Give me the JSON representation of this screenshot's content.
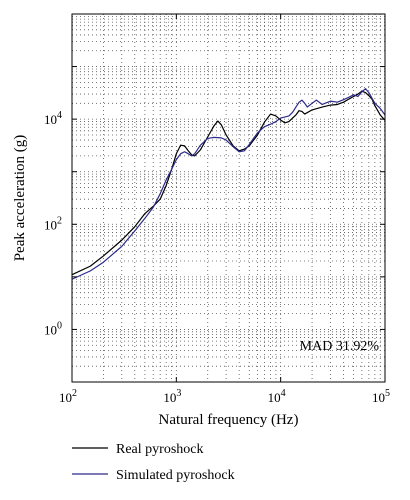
{
  "chart_data": {
    "type": "line",
    "xscale": "log",
    "yscale": "log",
    "xlim": [
      100,
      100000
    ],
    "ylim": [
      0.1,
      1000000
    ],
    "grid": true,
    "xlabel": "Natural frequency (Hz)",
    "ylabel": "Peak acceleration (g)",
    "xticks": [
      {
        "value": 100,
        "base": "10",
        "exp": "2"
      },
      {
        "value": 1000,
        "base": "10",
        "exp": "3"
      },
      {
        "value": 10000,
        "base": "10",
        "exp": "4"
      },
      {
        "value": 100000,
        "base": "10",
        "exp": "5"
      }
    ],
    "yticks": [
      {
        "value": 1,
        "base": "10",
        "exp": "0"
      },
      {
        "value": 100,
        "base": "10",
        "exp": "2"
      },
      {
        "value": 10000,
        "base": "10",
        "exp": "4"
      }
    ],
    "annotation": "MAD 31.92%",
    "legend_position": "bottom",
    "series": [
      {
        "name": "Real pyroshock",
        "color": "#000000",
        "points": [
          [
            100,
            11
          ],
          [
            150,
            16
          ],
          [
            200,
            25
          ],
          [
            300,
            50
          ],
          [
            400,
            90
          ],
          [
            500,
            160
          ],
          [
            600,
            220
          ],
          [
            700,
            300
          ],
          [
            800,
            550
          ],
          [
            900,
            1100
          ],
          [
            1000,
            2200
          ],
          [
            1100,
            3200
          ],
          [
            1200,
            3100
          ],
          [
            1300,
            2500
          ],
          [
            1400,
            2100
          ],
          [
            1500,
            2000
          ],
          [
            1700,
            2600
          ],
          [
            2000,
            4600
          ],
          [
            2300,
            7500
          ],
          [
            2500,
            9200
          ],
          [
            2700,
            7800
          ],
          [
            3000,
            5000
          ],
          [
            3500,
            3100
          ],
          [
            4000,
            2500
          ],
          [
            4500,
            2700
          ],
          [
            5000,
            3100
          ],
          [
            6000,
            5000
          ],
          [
            7000,
            8800
          ],
          [
            8000,
            12500
          ],
          [
            9000,
            11500
          ],
          [
            10000,
            9600
          ],
          [
            11000,
            8500
          ],
          [
            12000,
            9000
          ],
          [
            13000,
            10500
          ],
          [
            14000,
            12000
          ],
          [
            15000,
            14500
          ],
          [
            16000,
            14000
          ],
          [
            17000,
            12500
          ],
          [
            20000,
            15000
          ],
          [
            25000,
            17000
          ],
          [
            30000,
            18500
          ],
          [
            35000,
            19000
          ],
          [
            40000,
            21000
          ],
          [
            45000,
            24000
          ],
          [
            50000,
            27000
          ],
          [
            55000,
            30000
          ],
          [
            60000,
            34000
          ],
          [
            65000,
            32000
          ],
          [
            70000,
            28000
          ],
          [
            75000,
            24000
          ],
          [
            80000,
            18000
          ],
          [
            90000,
            12000
          ],
          [
            100000,
            9500
          ]
        ]
      },
      {
        "name": "Simulated pyroshock",
        "color": "#2c2a8c",
        "points": [
          [
            100,
            9
          ],
          [
            150,
            13
          ],
          [
            200,
            19
          ],
          [
            300,
            38
          ],
          [
            400,
            75
          ],
          [
            500,
            130
          ],
          [
            600,
            210
          ],
          [
            700,
            380
          ],
          [
            800,
            700
          ],
          [
            900,
            1100
          ],
          [
            1000,
            1700
          ],
          [
            1100,
            2200
          ],
          [
            1200,
            2400
          ],
          [
            1300,
            2200
          ],
          [
            1400,
            2000
          ],
          [
            1500,
            2200
          ],
          [
            1700,
            3200
          ],
          [
            2000,
            4300
          ],
          [
            2300,
            4500
          ],
          [
            2700,
            4400
          ],
          [
            3000,
            4000
          ],
          [
            3500,
            3000
          ],
          [
            4000,
            2400
          ],
          [
            4500,
            2500
          ],
          [
            5000,
            3300
          ],
          [
            6000,
            5500
          ],
          [
            7000,
            7200
          ],
          [
            8000,
            8000
          ],
          [
            9000,
            9000
          ],
          [
            10000,
            10500
          ],
          [
            11000,
            11000
          ],
          [
            12000,
            11500
          ],
          [
            13000,
            13500
          ],
          [
            14000,
            17000
          ],
          [
            15000,
            21000
          ],
          [
            16000,
            23000
          ],
          [
            17000,
            20000
          ],
          [
            18000,
            17000
          ],
          [
            20000,
            20000
          ],
          [
            22000,
            23000
          ],
          [
            25000,
            19000
          ],
          [
            30000,
            22000
          ],
          [
            35000,
            21000
          ],
          [
            40000,
            23500
          ],
          [
            45000,
            26000
          ],
          [
            50000,
            29000
          ],
          [
            55000,
            27000
          ],
          [
            60000,
            33000
          ],
          [
            65000,
            38000
          ],
          [
            70000,
            32000
          ],
          [
            75000,
            25000
          ],
          [
            80000,
            20000
          ],
          [
            90000,
            16000
          ],
          [
            100000,
            12000
          ]
        ]
      }
    ]
  }
}
